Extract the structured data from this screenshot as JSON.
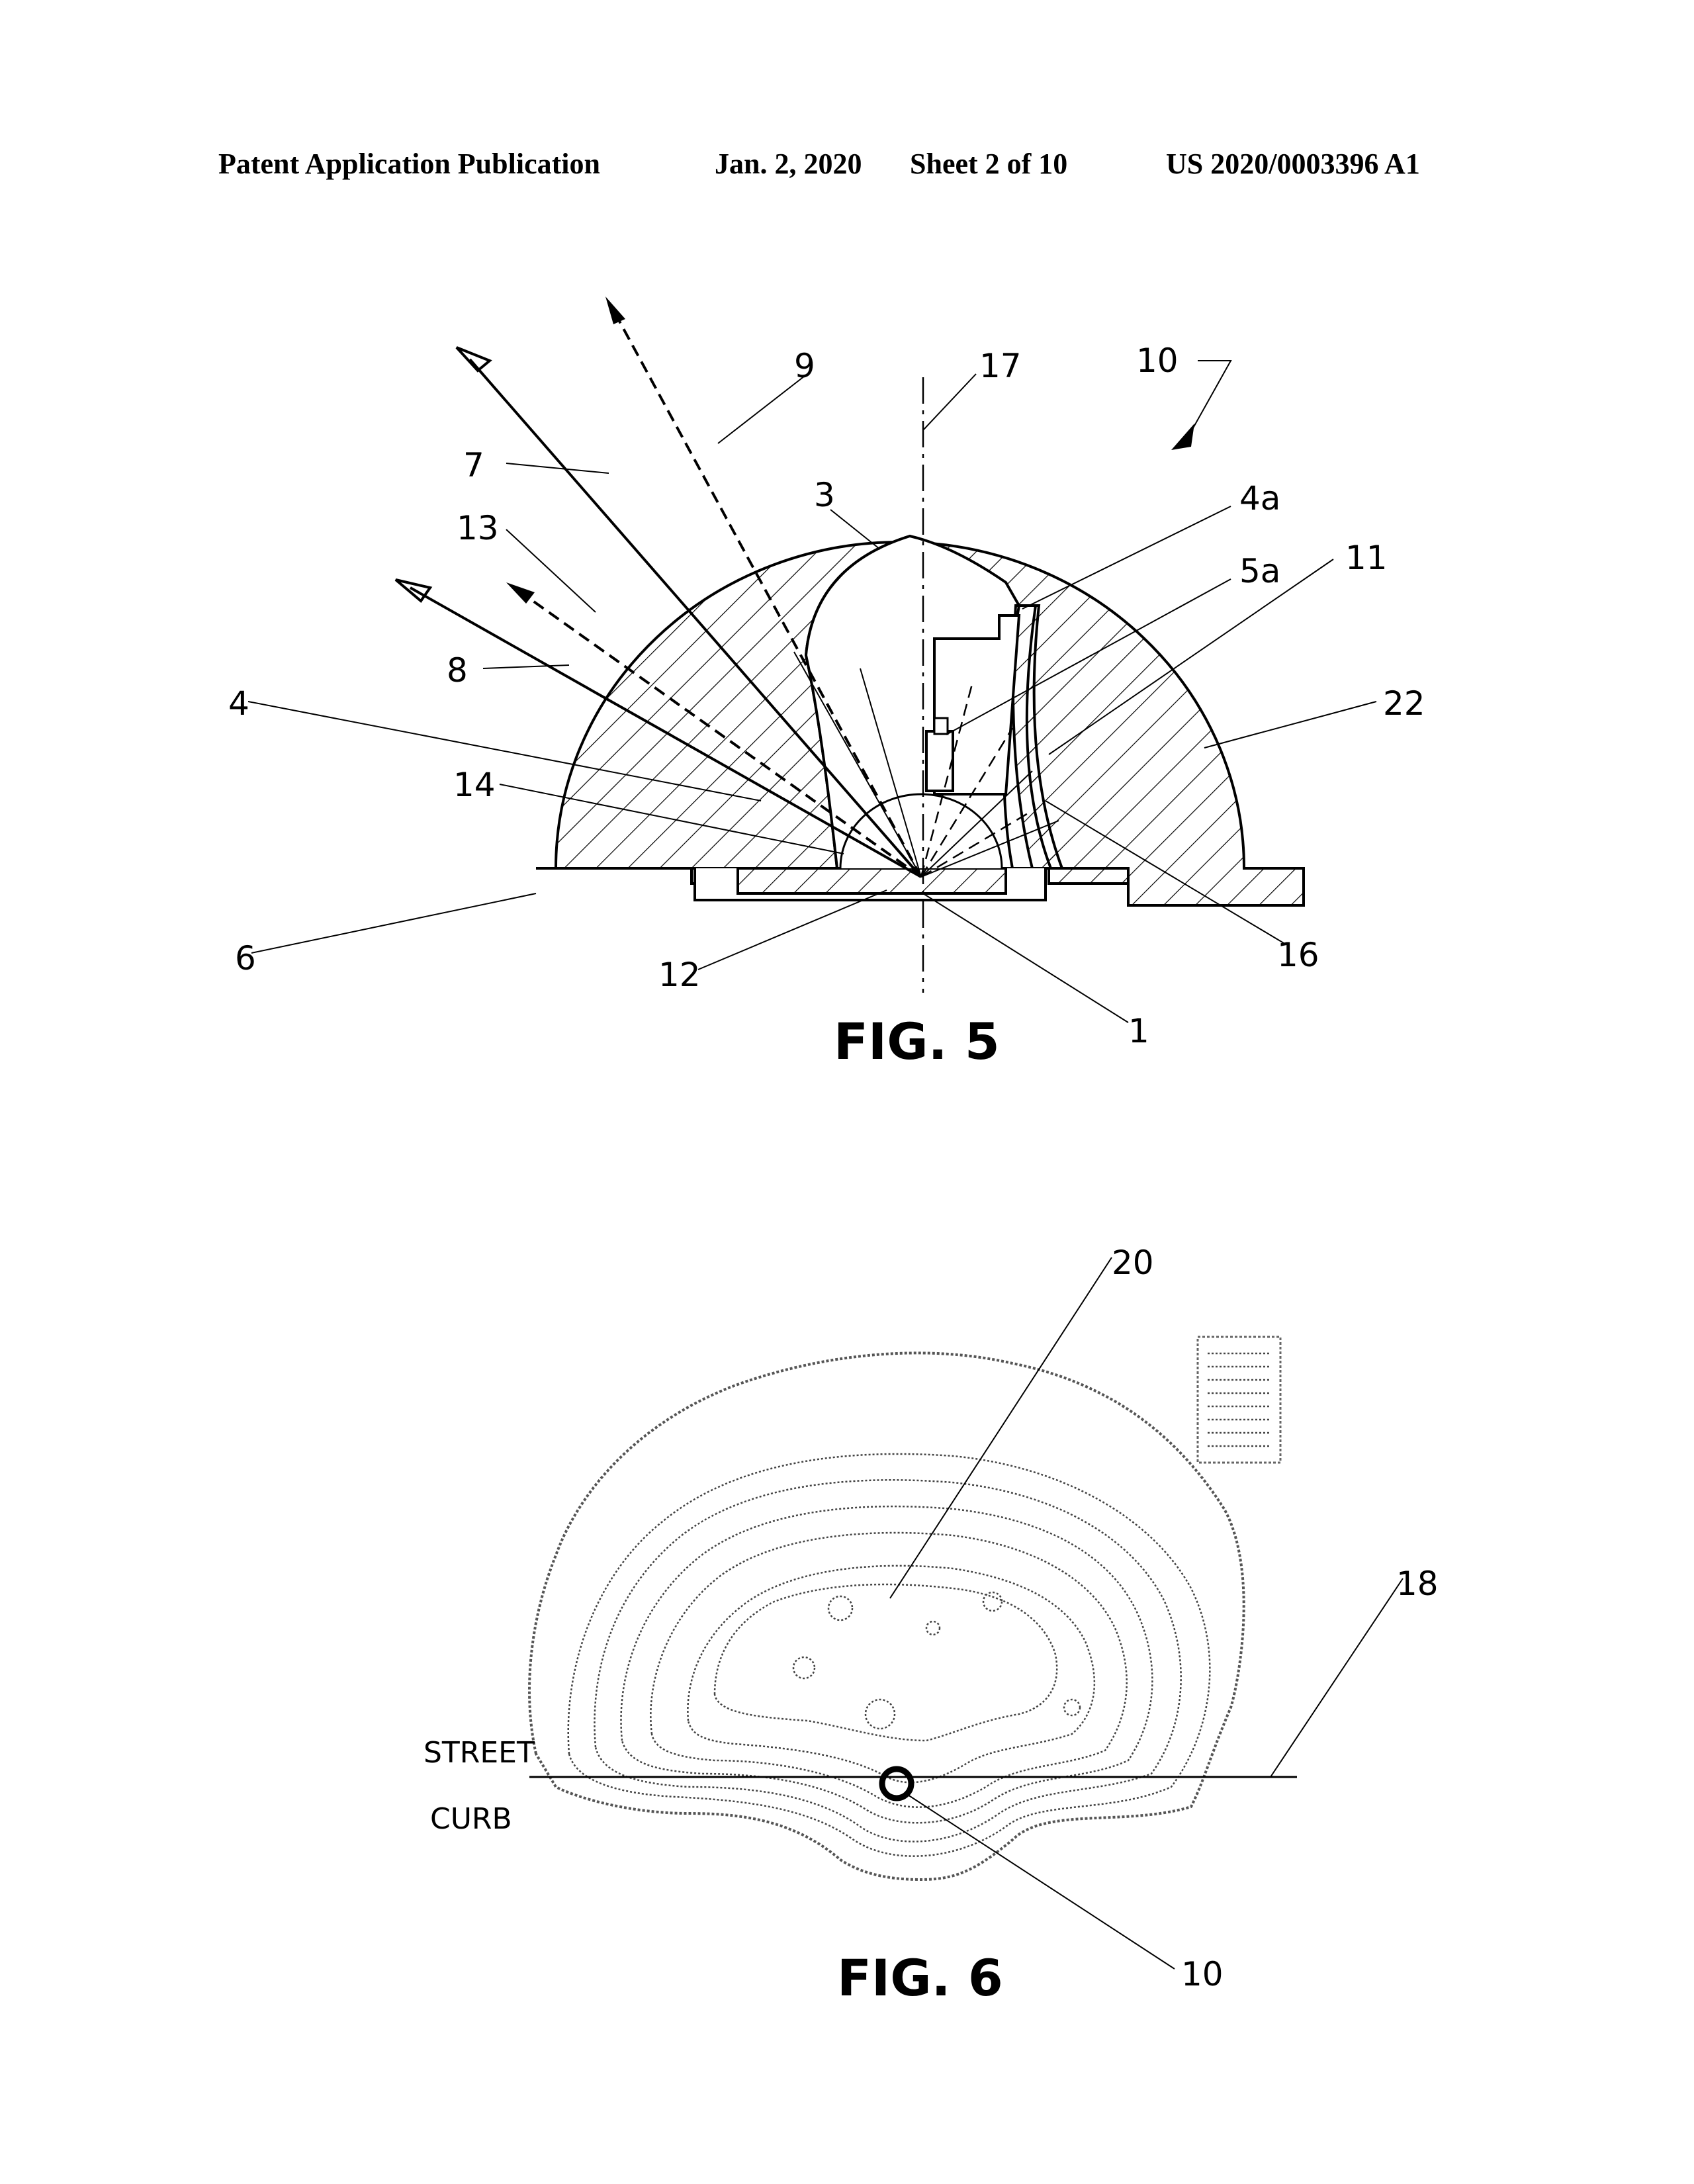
{
  "header": {
    "publication": "Patent Application Publication",
    "date": "Jan. 2, 2020",
    "sheet": "Sheet 2 of 10",
    "number": "US 2020/0003396 A1"
  },
  "fig5": {
    "caption": "FIG. 5",
    "labels": {
      "l10": "10",
      "l9": "9",
      "l17": "17",
      "l7": "7",
      "l13": "13",
      "l3": "3",
      "l4a": "4a",
      "l5a": "5a",
      "l11": "11",
      "l8": "8",
      "l22": "22",
      "l4": "4",
      "l14": "14",
      "l6": "6",
      "l12": "12",
      "l1": "1",
      "l16": "16"
    }
  },
  "fig6": {
    "caption": "FIG. 6",
    "labels": {
      "l20": "20",
      "l18": "18",
      "l10": "10",
      "street": "STREET",
      "curb": "CURB"
    }
  }
}
